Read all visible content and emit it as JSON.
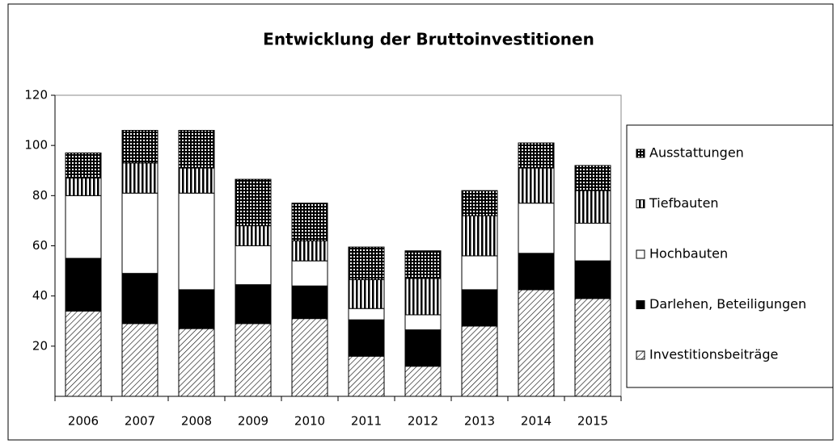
{
  "chart_data": {
    "type": "stacked-bar",
    "title": "Entwicklung der Bruttoinvestitionen",
    "categories": [
      "2006",
      "2007",
      "2008",
      "2009",
      "2010",
      "2011",
      "2012",
      "2013",
      "2014",
      "2015"
    ],
    "series": [
      {
        "name": "Investitionsbeiträge",
        "color": "#000000",
        "pattern": "hatch",
        "values": [
          34,
          29,
          27,
          29,
          31,
          16,
          12,
          28,
          42.5,
          39
        ]
      },
      {
        "name": "Darlehen, Beteiligungen",
        "color": "#000000",
        "pattern": "solid",
        "values": [
          21,
          20,
          15.5,
          15.5,
          13,
          14.5,
          14.5,
          14.5,
          14.5,
          15
        ]
      },
      {
        "name": "Hochbauten",
        "color": "#ffffff",
        "pattern": "solid",
        "values": [
          25,
          32,
          38.5,
          15.5,
          10,
          4.5,
          6,
          13.5,
          20,
          15
        ]
      },
      {
        "name": "Tiefbauten",
        "color": "#000000",
        "pattern": "vstripes",
        "values": [
          7,
          12,
          10,
          8,
          8,
          11.5,
          14.5,
          16,
          14,
          13
        ]
      },
      {
        "name": "Ausstattungen",
        "color": "#000000",
        "pattern": "grid",
        "values": [
          10,
          13,
          15,
          18.5,
          15,
          13,
          11,
          10,
          10,
          10
        ]
      }
    ],
    "ylim": [
      0,
      120
    ],
    "yticks": [
      20,
      40,
      60,
      80,
      100,
      120
    ],
    "grid": false,
    "legend": "right"
  }
}
